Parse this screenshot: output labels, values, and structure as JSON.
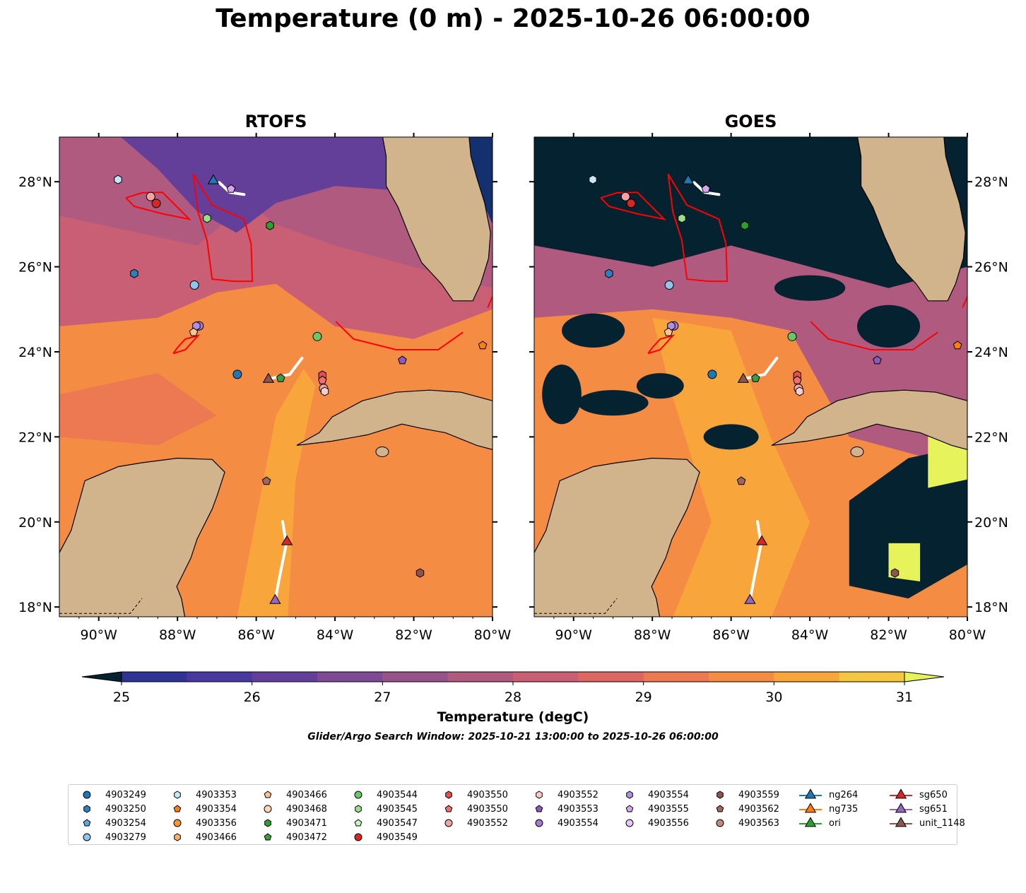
{
  "chart_data": {
    "type": "map",
    "title": "Temperature (0 m) - 2025-10-26 06:00:00",
    "panels": [
      {
        "title": "RTOFS"
      },
      {
        "title": "GOES"
      }
    ],
    "lon_range": [
      -91,
      -80
    ],
    "lat_range": [
      17.77,
      29.05
    ],
    "lon_ticks": [
      {
        "v": -90,
        "label": "90°W"
      },
      {
        "v": -88,
        "label": "88°W"
      },
      {
        "v": -86,
        "label": "86°W"
      },
      {
        "v": -84,
        "label": "84°W"
      },
      {
        "v": -82,
        "label": "82°W"
      },
      {
        "v": -80,
        "label": "80°W"
      }
    ],
    "lat_ticks": [
      {
        "v": 18,
        "label": "18°N"
      },
      {
        "v": 20,
        "label": "20°N"
      },
      {
        "v": 22,
        "label": "22°N"
      },
      {
        "v": 24,
        "label": "24°N"
      },
      {
        "v": 26,
        "label": "26°N"
      },
      {
        "v": 28,
        "label": "28°N"
      }
    ],
    "colorbar": {
      "label": "Temperature (degC)",
      "min": 25,
      "max": 31,
      "step": 0.5,
      "ticks": [
        "25",
        "26",
        "27",
        "28",
        "29",
        "30",
        "31"
      ],
      "colors": [
        "#0e2a4a",
        "#15306f",
        "#2f3396",
        "#48389f",
        "#643f9a",
        "#7f4a95",
        "#985289",
        "#b15a80",
        "#c85f74",
        "#dc6762",
        "#ec7951",
        "#f48c43",
        "#f8a63c",
        "#f5c63f"
      ],
      "under": "#052230",
      "over": "#e7f35a"
    },
    "search_window": "Glider/Argo Search Window: 2025-10-21 13:00:00 to 2025-10-26 06:00:00",
    "contours_lonlat": [
      [
        [
          -89.31,
          27.62
        ],
        [
          -88.9,
          27.74
        ],
        [
          -88.38,
          27.75
        ],
        [
          -87.7,
          27.12
        ],
        [
          -88.4,
          27.25
        ],
        [
          -89.1,
          27.42
        ],
        [
          -89.31,
          27.62
        ]
      ],
      [
        [
          -87.6,
          28.18
        ],
        [
          -87.12,
          27.45
        ],
        [
          -86.31,
          27.12
        ],
        [
          -86.13,
          26.54
        ],
        [
          -86.1,
          25.66
        ],
        [
          -86.58,
          25.66
        ],
        [
          -87.12,
          25.71
        ],
        [
          -87.25,
          26.62
        ],
        [
          -87.48,
          27.29
        ],
        [
          -87.6,
          28.18
        ]
      ],
      [
        [
          -88.11,
          23.96
        ],
        [
          -87.8,
          24.05
        ],
        [
          -87.48,
          24.38
        ],
        [
          -87.8,
          24.3
        ],
        [
          -88.0,
          24.1
        ],
        [
          -88.11,
          23.96
        ]
      ],
      [
        [
          -83.98,
          24.71
        ],
        [
          -83.53,
          24.3
        ],
        [
          -82.45,
          24.05
        ],
        [
          -81.38,
          24.05
        ],
        [
          -80.75,
          24.46
        ]
      ],
      [
        [
          -80.12,
          25.04
        ],
        [
          -80.0,
          25.3
        ]
      ]
    ],
    "tracks_lonlat": [
      [
        [
          -86.94,
          27.98
        ],
        [
          -86.67,
          27.75
        ],
        [
          -86.31,
          27.7
        ]
      ],
      [
        [
          -85.6,
          23.38
        ],
        [
          -85.15,
          23.47
        ],
        [
          -84.84,
          23.85
        ]
      ],
      [
        [
          -85.33,
          20.01
        ],
        [
          -85.24,
          19.48
        ],
        [
          -85.42,
          18.65
        ],
        [
          -85.5,
          18.25
        ]
      ]
    ],
    "markers": [
      {
        "id": "4903353",
        "shape": "hexagon",
        "color": "#c6e6fb",
        "lon": -89.51,
        "lat": 28.05
      },
      {
        "id": "4903552",
        "shape": "circle",
        "color": "#f3a3a3",
        "lon": -88.68,
        "lat": 27.65
      },
      {
        "id": "4903549",
        "shape": "circle",
        "color": "#d62728",
        "lon": -88.54,
        "lat": 27.49
      },
      {
        "id": "4903555",
        "shape": "pentagon",
        "color": "#d6a6ec",
        "lon": -86.64,
        "lat": 27.83
      },
      {
        "id": "4903545",
        "shape": "hexagon",
        "color": "#98df8a",
        "lon": -87.25,
        "lat": 27.14
      },
      {
        "id": "4903471",
        "shape": "hexagon",
        "color": "#2ca02c",
        "lon": -85.65,
        "lat": 26.97
      },
      {
        "id": "4903250",
        "shape": "hexagon",
        "color": "#2e7fc0",
        "lon": -89.1,
        "lat": 25.84
      },
      {
        "id": "4903279",
        "shape": "circle",
        "color": "#8fc6ea",
        "lon": -87.57,
        "lat": 25.57
      },
      {
        "id": "4903554",
        "shape": "circle",
        "color": "#a57cd0",
        "lon": -87.45,
        "lat": 24.61
      },
      {
        "id": "4903554",
        "shape": "hexagon",
        "color": "#b38ee0",
        "lon": -87.52,
        "lat": 24.61
      },
      {
        "id": "4903466",
        "shape": "pentagon",
        "color": "#fcc593",
        "lon": -87.59,
        "lat": 24.46
      },
      {
        "id": "4903544",
        "shape": "circle",
        "color": "#66c966",
        "lon": -84.45,
        "lat": 24.36
      },
      {
        "id": "4903354",
        "shape": "pentagon",
        "color": "#ff7f0e",
        "lon": -80.25,
        "lat": 24.15
      },
      {
        "id": "4903553",
        "shape": "pentagon",
        "color": "#8c5ab8",
        "lon": -82.29,
        "lat": 23.8
      },
      {
        "id": "4903249",
        "shape": "circle",
        "color": "#1f77b4",
        "lon": -86.48,
        "lat": 23.47
      },
      {
        "id": "4903472",
        "shape": "pentagon",
        "color": "#3a9e3a",
        "lon": -85.38,
        "lat": 23.38
      },
      {
        "id": "4903550",
        "shape": "hexagon",
        "color": "#e05050",
        "lon": -84.32,
        "lat": 23.45
      },
      {
        "id": "4903550",
        "shape": "pentagon",
        "color": "#f07070",
        "lon": -84.32,
        "lat": 23.33
      },
      {
        "id": "4903552",
        "shape": "circle",
        "color": "#f3a3a3",
        "lon": -84.29,
        "lat": 23.14
      },
      {
        "id": "4903552",
        "shape": "hexagon",
        "color": "#ffcccc",
        "lon": -84.26,
        "lat": 23.07
      },
      {
        "id": "4903562",
        "shape": "pentagon",
        "color": "#a0685a",
        "lon": -85.74,
        "lat": 20.96
      },
      {
        "id": "4903559",
        "shape": "hexagon",
        "color": "#8c564b",
        "lon": -81.84,
        "lat": 18.8
      },
      {
        "id": "ng264",
        "shape": "triangle",
        "color": "#1f77b4",
        "lon": -87.09,
        "lat": 28.05
      },
      {
        "id": "unit_1148",
        "shape": "triangle",
        "color": "#8c564b",
        "lon": -85.69,
        "lat": 23.38
      },
      {
        "id": "sg650",
        "shape": "triangle",
        "color": "#d62728",
        "lon": -85.22,
        "lat": 19.56
      },
      {
        "id": "sg651",
        "shape": "triangle",
        "color": "#9467bd",
        "lon": -85.52,
        "lat": 18.18
      }
    ],
    "legend": [
      {
        "label": "4903249",
        "shape": "circle",
        "color": "#1f77b4"
      },
      {
        "label": "4903250",
        "shape": "hexagon",
        "color": "#2e7fc0"
      },
      {
        "label": "4903254",
        "shape": "pentagon",
        "color": "#5da8df"
      },
      {
        "label": "4903279",
        "shape": "circle",
        "color": "#8fc6ea"
      },
      {
        "label": "4903353",
        "shape": "hexagon",
        "color": "#c6e6fb"
      },
      {
        "label": "4903354",
        "shape": "pentagon",
        "color": "#ff7f0e"
      },
      {
        "label": "4903356",
        "shape": "circle",
        "color": "#ff9433"
      },
      {
        "label": "4903466",
        "shape": "hexagon",
        "color": "#fcae6b"
      },
      {
        "label": "4903466",
        "shape": "pentagon",
        "color": "#fcc593"
      },
      {
        "label": "4903468",
        "shape": "circle",
        "color": "#fdd9b5"
      },
      {
        "label": "4903471",
        "shape": "hexagon",
        "color": "#2ca02c"
      },
      {
        "label": "4903472",
        "shape": "pentagon",
        "color": "#3a9e3a"
      },
      {
        "label": "4903544",
        "shape": "circle",
        "color": "#66c966"
      },
      {
        "label": "4903545",
        "shape": "hexagon",
        "color": "#98df8a"
      },
      {
        "label": "4903547",
        "shape": "pentagon",
        "color": "#c9f5c0"
      },
      {
        "label": "4903549",
        "shape": "circle",
        "color": "#d62728"
      },
      {
        "label": "4903550",
        "shape": "hexagon",
        "color": "#e05050"
      },
      {
        "label": "4903550",
        "shape": "pentagon",
        "color": "#f07070"
      },
      {
        "label": "4903552",
        "shape": "circle",
        "color": "#f3a3a3"
      },
      {
        "label": "",
        "shape": "none",
        "color": ""
      },
      {
        "label": "4903552",
        "shape": "hexagon",
        "color": "#ffcccc"
      },
      {
        "label": "4903553",
        "shape": "pentagon",
        "color": "#8c5ab8"
      },
      {
        "label": "4903554",
        "shape": "circle",
        "color": "#a57cd0"
      },
      {
        "label": "",
        "shape": "none",
        "color": ""
      },
      {
        "label": "4903554",
        "shape": "hexagon",
        "color": "#b38ee0"
      },
      {
        "label": "4903555",
        "shape": "pentagon",
        "color": "#d6a6ec"
      },
      {
        "label": "4903556",
        "shape": "circle",
        "color": "#e6c8f7"
      },
      {
        "label": "",
        "shape": "none",
        "color": ""
      },
      {
        "label": "4903559",
        "shape": "hexagon",
        "color": "#8c564b"
      },
      {
        "label": "4903562",
        "shape": "pentagon",
        "color": "#a0685a"
      },
      {
        "label": "4903563",
        "shape": "circle",
        "color": "#c48a7c"
      },
      {
        "label": "",
        "shape": "none",
        "color": ""
      },
      {
        "label": "ng264",
        "shape": "tri-line",
        "color": "#1f77b4"
      },
      {
        "label": "ng735",
        "shape": "tri-line",
        "color": "#ff7f0e"
      },
      {
        "label": "ori",
        "shape": "tri-line",
        "color": "#2ca02c"
      },
      {
        "label": "",
        "shape": "none",
        "color": ""
      },
      {
        "label": "sg650",
        "shape": "tri-line",
        "color": "#d62728"
      },
      {
        "label": "sg651",
        "shape": "tri-line",
        "color": "#9467bd"
      },
      {
        "label": "unit_1148",
        "shape": "tri-line",
        "color": "#8c564b"
      }
    ],
    "land_color": "#d2b48c"
  }
}
